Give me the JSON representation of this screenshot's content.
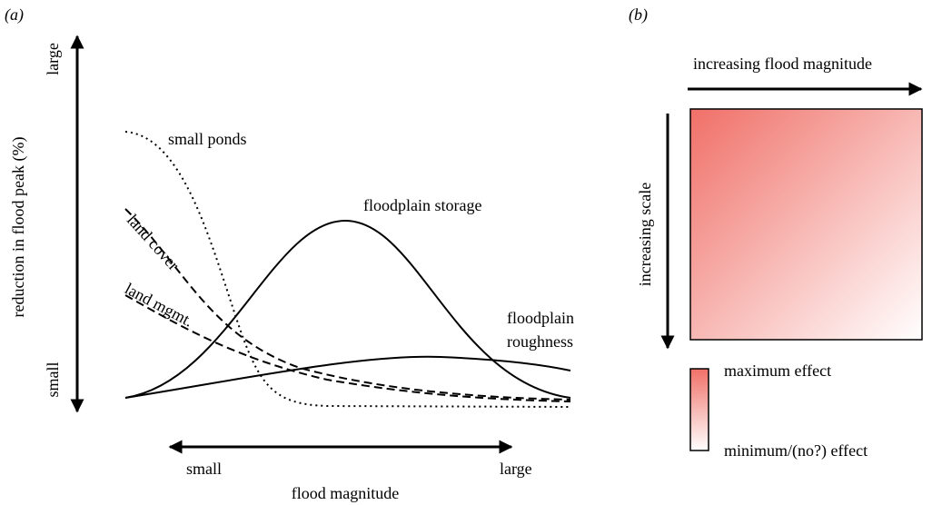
{
  "panels": [
    {
      "label": "(a)",
      "y_axis": {
        "title": "reduction in flood peak (%)",
        "top": "large",
        "bottom": "small"
      },
      "x_axis": {
        "title": "flood magnitude",
        "left": "small",
        "right": "large"
      },
      "curves": [
        {
          "label": "small ponds"
        },
        {
          "label": "land cover"
        },
        {
          "label": "land mgmt."
        },
        {
          "label": "floodplain storage"
        },
        {
          "label": [
            "floodplain",
            "roughness"
          ]
        }
      ]
    },
    {
      "label": "(b)",
      "top_arrow": "increasing flood magnitude",
      "side_arrow": "increasing scale",
      "legend": {
        "max": "maximum effect",
        "min": "minimum/(no?) effect"
      }
    }
  ]
}
